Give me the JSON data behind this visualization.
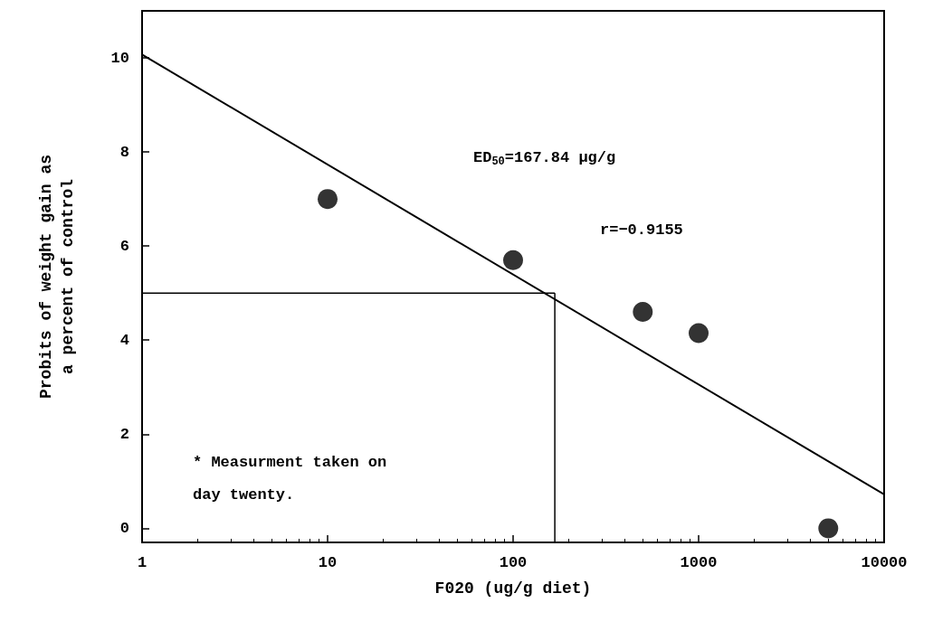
{
  "chart_data": {
    "type": "scatter",
    "xlabel": "F020 (ug/g diet)",
    "ylabel": "Probits of weight gain as\na percent of control",
    "log": "x",
    "xlim": [
      1,
      10000
    ],
    "xticks": [
      1,
      10,
      100,
      1000,
      10000
    ],
    "ylim": [
      -0.3,
      11
    ],
    "yticks": [
      0,
      2,
      4,
      6,
      8,
      10
    ],
    "grid": false,
    "marker": "circle",
    "series": [
      {
        "color": "#000000",
        "x": [
          10,
          100,
          500,
          1000,
          5000
        ],
        "values": [
          7.0,
          5.7,
          4.6,
          4.15,
          0.0
        ]
      },
      {
        "type": "line",
        "color": "#000000",
        "marker": "none",
        "x": [
          1,
          10000
        ],
        "values": [
          10.07,
          0.72
        ]
      }
    ],
    "ref_lines": [
      {
        "axis": "y",
        "value": 5,
        "color": "#000000"
      },
      {
        "axis": "x",
        "value": 167.84,
        "color": "#000000"
      }
    ],
    "annotations": [
      "ED$_{50}$=167.84 μg/g",
      "r=−0.9155",
      "* Measurment taken on day twenty."
    ]
  }
}
